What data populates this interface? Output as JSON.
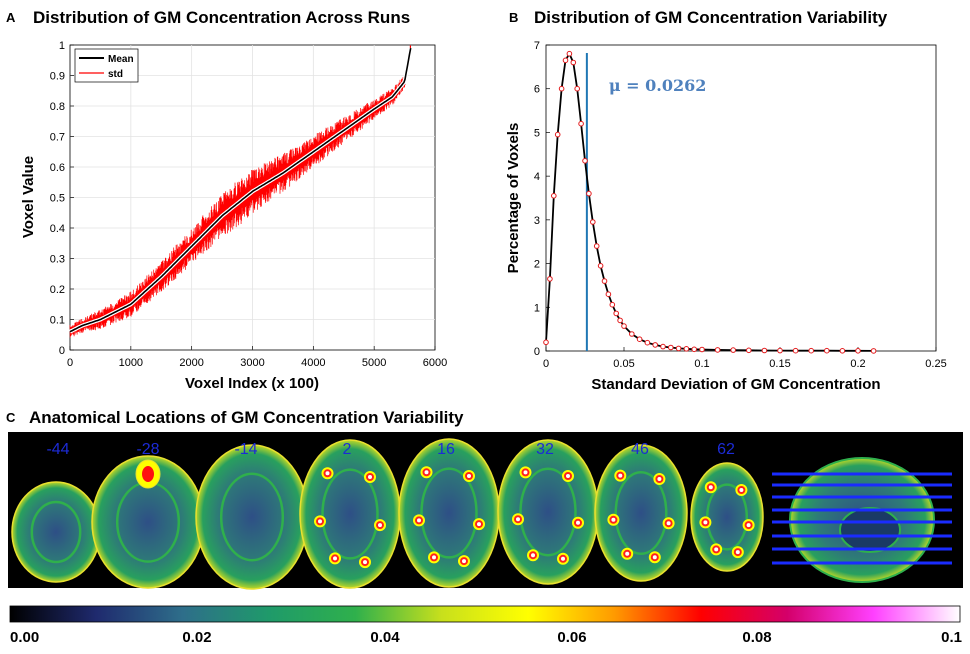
{
  "colors": {
    "mean_line": "#000000",
    "std_line": "#ff0000",
    "mu_line": "#1f77b4",
    "mu_text": "#4f81bd",
    "slice_label": "#1c2bd6",
    "marker": "#e31a1c"
  },
  "chart_data": [
    {
      "id": "A",
      "panel_letter": "A",
      "type": "line",
      "title": "Distribution of GM Concentration Across Runs",
      "xlabel": "Voxel Index (x 100)",
      "ylabel": "Voxel Value",
      "xlim": [
        0,
        6000
      ],
      "ylim": [
        0,
        1
      ],
      "xticks": [
        0,
        1000,
        2000,
        3000,
        4000,
        5000,
        6000
      ],
      "yticks": [
        0,
        0.1,
        0.2,
        0.3,
        0.4,
        0.5,
        0.6,
        0.7,
        0.8,
        0.9,
        1
      ],
      "xtick_labels": [
        "0",
        "1000",
        "2000",
        "3000",
        "4000",
        "5000",
        "6000"
      ],
      "ytick_labels": [
        "0",
        "0.1",
        "0.2",
        "0.3",
        "0.4",
        "0.5",
        "0.6",
        "0.7",
        "0.8",
        "0.9",
        "1"
      ],
      "grid": true,
      "legend": {
        "position": "top-left",
        "entries": [
          "Mean",
          "std"
        ]
      },
      "series": [
        {
          "name": "Mean",
          "color": "#000000",
          "x": [
            0,
            200,
            500,
            1000,
            1500,
            2000,
            2500,
            3000,
            3500,
            4000,
            4500,
            5000,
            5300,
            5500,
            5600
          ],
          "y": [
            0.06,
            0.08,
            0.1,
            0.15,
            0.24,
            0.34,
            0.44,
            0.52,
            0.58,
            0.65,
            0.72,
            0.79,
            0.83,
            0.88,
            0.99
          ]
        },
        {
          "name": "std",
          "color": "#ff0000",
          "band_halfwidth": [
            0.02,
            0.07,
            0.02
          ],
          "x": [
            0,
            200,
            500,
            1000,
            1500,
            2000,
            2500,
            3000,
            3500,
            4000,
            4500,
            5000,
            5300,
            5500,
            5600
          ],
          "y": [
            0.06,
            0.08,
            0.1,
            0.15,
            0.24,
            0.34,
            0.44,
            0.52,
            0.58,
            0.65,
            0.72,
            0.79,
            0.83,
            0.88,
            0.99
          ]
        }
      ]
    },
    {
      "id": "B",
      "panel_letter": "B",
      "type": "line",
      "title": "Distribution of GM Concentration Variability",
      "xlabel": "Standard Deviation of GM Concentration",
      "ylabel": "Percentage of Voxels",
      "xlim": [
        0,
        0.25
      ],
      "ylim": [
        0,
        7
      ],
      "xticks": [
        0,
        0.05,
        0.1,
        0.15,
        0.2,
        0.25
      ],
      "yticks": [
        0,
        1,
        2,
        3,
        4,
        5,
        6,
        7
      ],
      "xtick_labels": [
        "0",
        "0.05",
        "0.1",
        "0.15",
        "0.2",
        "0.25"
      ],
      "ytick_labels": [
        "0",
        "1",
        "2",
        "3",
        "4",
        "5",
        "6",
        "7"
      ],
      "grid": false,
      "mean_marker": {
        "value": 0.0262,
        "label": "μ = 0.0262"
      },
      "series": [
        {
          "name": "distribution",
          "x": [
            0,
            0.0025,
            0.005,
            0.0075,
            0.01,
            0.0125,
            0.015,
            0.0175,
            0.02,
            0.0225,
            0.025,
            0.0275,
            0.03,
            0.0325,
            0.035,
            0.0375,
            0.04,
            0.0425,
            0.045,
            0.0475,
            0.05,
            0.055,
            0.06,
            0.065,
            0.07,
            0.075,
            0.08,
            0.085,
            0.09,
            0.095,
            0.1,
            0.11,
            0.12,
            0.13,
            0.14,
            0.15,
            0.16,
            0.17,
            0.18,
            0.19,
            0.2,
            0.21
          ],
          "y": [
            0.2,
            1.65,
            3.55,
            4.95,
            6.0,
            6.65,
            6.8,
            6.6,
            6.0,
            5.2,
            4.35,
            3.6,
            2.95,
            2.4,
            1.95,
            1.6,
            1.3,
            1.06,
            0.86,
            0.7,
            0.57,
            0.39,
            0.27,
            0.19,
            0.14,
            0.1,
            0.08,
            0.06,
            0.05,
            0.04,
            0.035,
            0.025,
            0.02,
            0.015,
            0.012,
            0.01,
            0.008,
            0.007,
            0.006,
            0.005,
            0.004,
            0.003
          ]
        }
      ]
    }
  ],
  "panel_c": {
    "panel_letter": "C",
    "title": "Anatomical Locations of GM Concentration Variability",
    "slices": [
      {
        "label": "-44"
      },
      {
        "label": "-28"
      },
      {
        "label": "-14"
      },
      {
        "label": "2"
      },
      {
        "label": "16"
      },
      {
        "label": "32"
      },
      {
        "label": "46"
      },
      {
        "label": "62"
      }
    ],
    "colorbar": {
      "stops": [
        "#000000",
        "#1f2a6e",
        "#2e6e8a",
        "#1f9a6a",
        "#2fb04c",
        "#c8e01c",
        "#ffff00",
        "#ff9a00",
        "#ff0000",
        "#d4006a",
        "#ff40ff",
        "#ffffff"
      ],
      "tick_labels": [
        "0.00",
        "0.02",
        "0.04",
        "0.06",
        "0.08",
        "0.1"
      ]
    }
  }
}
